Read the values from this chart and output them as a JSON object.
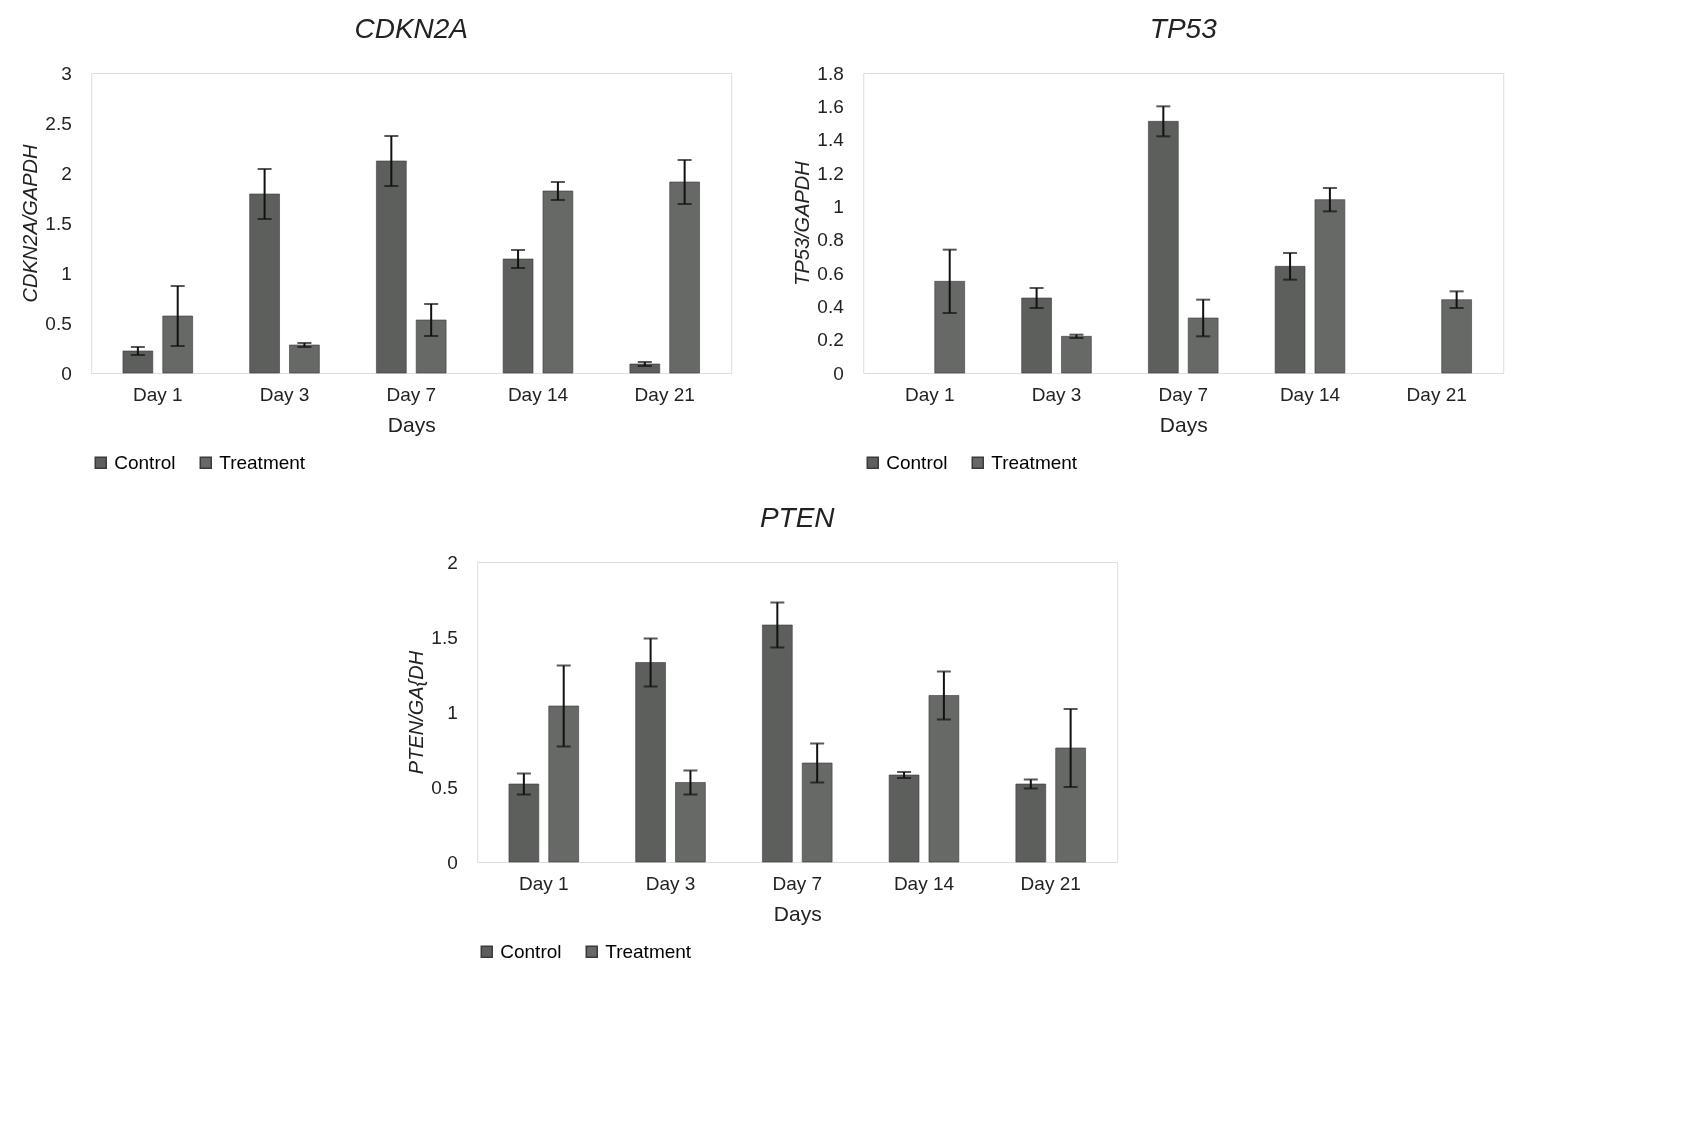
{
  "chart_data": [
    {
      "type": "bar",
      "title": "CDKN2A",
      "xlabel": "Days",
      "ylabel": "CDKN2A/GAPDH",
      "categories": [
        "Day 1",
        "Day 3",
        "Day 7",
        "Day 14",
        "Day 21"
      ],
      "ylim": [
        0,
        3
      ],
      "yticks": [
        0,
        0.5,
        1,
        1.5,
        2,
        2.5,
        3
      ],
      "grid": false,
      "legend": "bottom",
      "series": [
        {
          "name": "Control",
          "color": "#5c5f5c",
          "values": [
            0.22,
            1.79,
            2.12,
            1.14,
            0.09
          ],
          "errors": [
            0.04,
            0.25,
            0.25,
            0.09,
            0.02
          ]
        },
        {
          "name": "Treatment",
          "color": "#666966",
          "values": [
            0.57,
            0.28,
            0.53,
            1.82,
            1.91
          ],
          "errors": [
            0.3,
            0.02,
            0.16,
            0.09,
            0.22
          ]
        }
      ]
    },
    {
      "type": "bar",
      "title": "TP53",
      "xlabel": "Days",
      "ylabel": "TP53/GAPDH",
      "categories": [
        "Day 1",
        "Day 3",
        "Day 7",
        "Day 14",
        "Day 21"
      ],
      "ylim": [
        0,
        1.8
      ],
      "yticks": [
        0,
        0.2,
        0.4,
        0.6,
        0.8,
        1,
        1.2,
        1.4,
        1.6,
        1.8
      ],
      "grid": false,
      "legend": "bottom",
      "series": [
        {
          "name": "Control",
          "color": "#5c5f5c",
          "values": [
            null,
            0.45,
            1.51,
            0.64,
            null
          ],
          "errors": [
            null,
            0.06,
            0.09,
            0.08,
            null
          ]
        },
        {
          "name": "Treatment",
          "color": "#666966",
          "values": [
            0.55,
            0.22,
            0.33,
            1.04,
            0.44
          ],
          "errors": [
            0.19,
            0.01,
            0.11,
            0.07,
            0.05
          ]
        }
      ]
    },
    {
      "type": "bar",
      "title": "PTEN",
      "xlabel": "Days",
      "ylabel": "PTEN/GA{DH",
      "categories": [
        "Day 1",
        "Day 3",
        "Day 7",
        "Day 14",
        "Day 21"
      ],
      "ylim": [
        0,
        2
      ],
      "yticks": [
        0,
        0.5,
        1,
        1.5,
        2
      ],
      "grid": false,
      "legend": "bottom",
      "series": [
        {
          "name": "Control",
          "color": "#5c5f5c",
          "values": [
            0.52,
            1.33,
            1.58,
            0.58,
            0.52
          ],
          "errors": [
            0.07,
            0.16,
            0.15,
            0.02,
            0.03
          ]
        },
        {
          "name": "Treatment",
          "color": "#666966",
          "values": [
            1.04,
            0.53,
            0.66,
            1.11,
            0.76
          ],
          "errors": [
            0.27,
            0.08,
            0.13,
            0.16,
            0.26
          ]
        }
      ]
    }
  ]
}
